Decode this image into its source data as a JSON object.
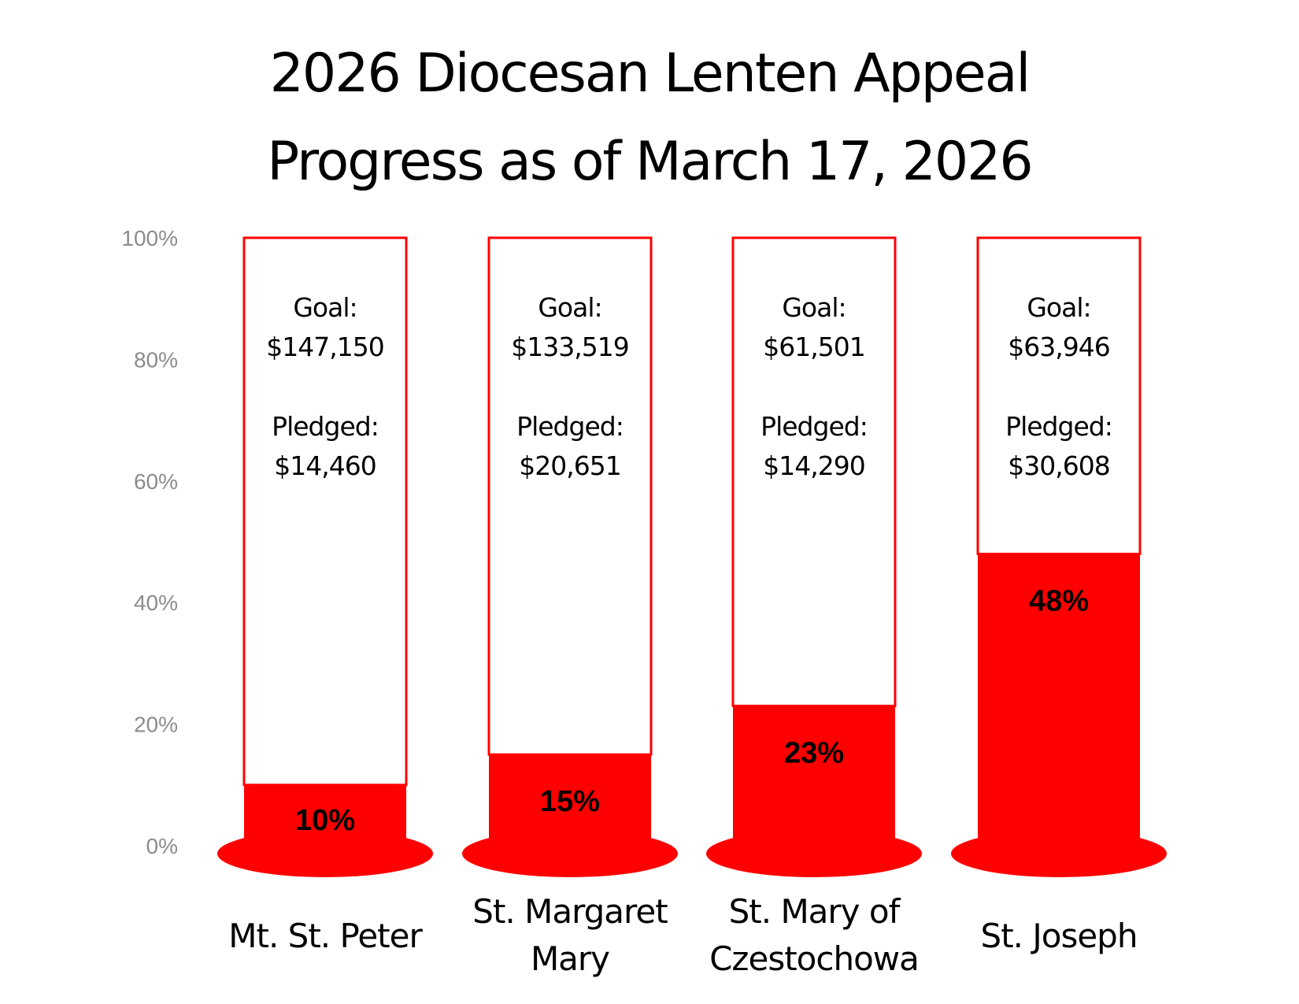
{
  "title": {
    "line1": "2026 Diocesan Lenten Appeal",
    "line2": "Progress as of March 17, 2026"
  },
  "colors": {
    "fill": "#ff0000",
    "outline": "#ff0000",
    "tick": "#8c8c8c"
  },
  "chart_data": {
    "type": "bar",
    "title": "2026 Diocesan Lenten Appeal Progress as of March 17, 2026",
    "ylim": [
      0,
      100
    ],
    "yticks": [
      "0%",
      "20%",
      "40%",
      "60%",
      "80%",
      "100%"
    ],
    "grid": false,
    "categories": [
      [
        "Mt. St. Peter"
      ],
      [
        "St. Margaret",
        "Mary"
      ],
      [
        "St. Mary of",
        "Czestochowa"
      ],
      [
        "St. Joseph"
      ]
    ],
    "values": [
      10,
      15,
      23,
      48
    ],
    "value_labels": [
      "10%",
      "15%",
      "23%",
      "48%"
    ],
    "goal_label": "Goal:",
    "pledged_label": "Pledged:",
    "goals": [
      "$147,150",
      "$133,519",
      "$61,501",
      "$63,946"
    ],
    "pledged": [
      "$14,460",
      "$20,651",
      "$14,290",
      "$30,608"
    ]
  }
}
